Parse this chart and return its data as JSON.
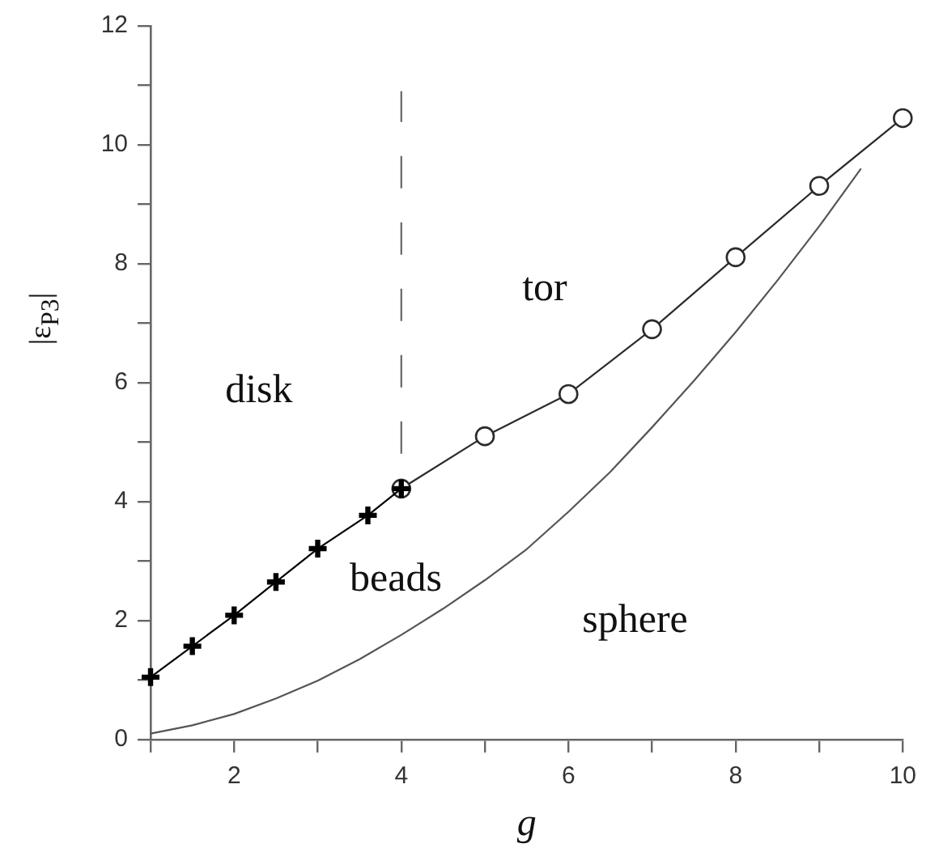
{
  "chart_data": {
    "type": "line",
    "xlabel": "g",
    "ylabel": "|ε$_{P3}$|",
    "xlim": [
      1,
      10
    ],
    "xticks": [
      {
        "value": 1,
        "label": null
      },
      2,
      {
        "value": 3,
        "label": null
      },
      4,
      {
        "value": 5,
        "label": null
      },
      6,
      {
        "value": 7,
        "label": null
      },
      8,
      {
        "value": 9,
        "label": null
      },
      10
    ],
    "ylim": [
      0,
      12
    ],
    "yticks": [
      0,
      {
        "value": 1,
        "label": null
      },
      2,
      {
        "value": 3,
        "label": null
      },
      4,
      {
        "value": 5,
        "label": null
      },
      6,
      {
        "value": 7,
        "label": null
      },
      8,
      {
        "value": 9,
        "label": null
      },
      10,
      {
        "value": 11,
        "label": null
      },
      12
    ],
    "series": [
      {
        "color": "#000000",
        "marker": "cross",
        "x": [
          1,
          1.5,
          2,
          2.5,
          3,
          3.6,
          4
        ],
        "values": [
          1.05,
          1.57,
          2.09,
          2.65,
          3.21,
          3.77,
          4.22
        ]
      },
      {
        "color": "#2b2b2b",
        "marker": "circle",
        "x": [
          4,
          5,
          6,
          7,
          8,
          9,
          10
        ],
        "values": [
          4.22,
          5.1,
          5.81,
          6.9,
          8.11,
          9.31,
          10.45
        ]
      },
      {
        "color": "#555555",
        "marker": "none",
        "x": [
          1,
          1.5,
          2,
          2.5,
          3,
          3.5,
          4,
          4.5,
          5,
          5.5,
          6,
          6.5,
          7,
          7.5,
          8,
          8.5,
          9,
          9.5
        ],
        "values": [
          0.1,
          0.24,
          0.43,
          0.69,
          0.99,
          1.35,
          1.76,
          2.2,
          2.68,
          3.2,
          3.83,
          4.5,
          5.25,
          6.03,
          6.85,
          7.72,
          8.63,
          9.6
        ]
      },
      {
        "color": "#666666",
        "marker": "none",
        "line_style": "dashed",
        "x": [
          4,
          4
        ],
        "values": [
          4.22,
          10.9
        ]
      }
    ],
    "annotations": [
      "disk",
      "tor",
      "beads",
      "sphere"
    ]
  }
}
